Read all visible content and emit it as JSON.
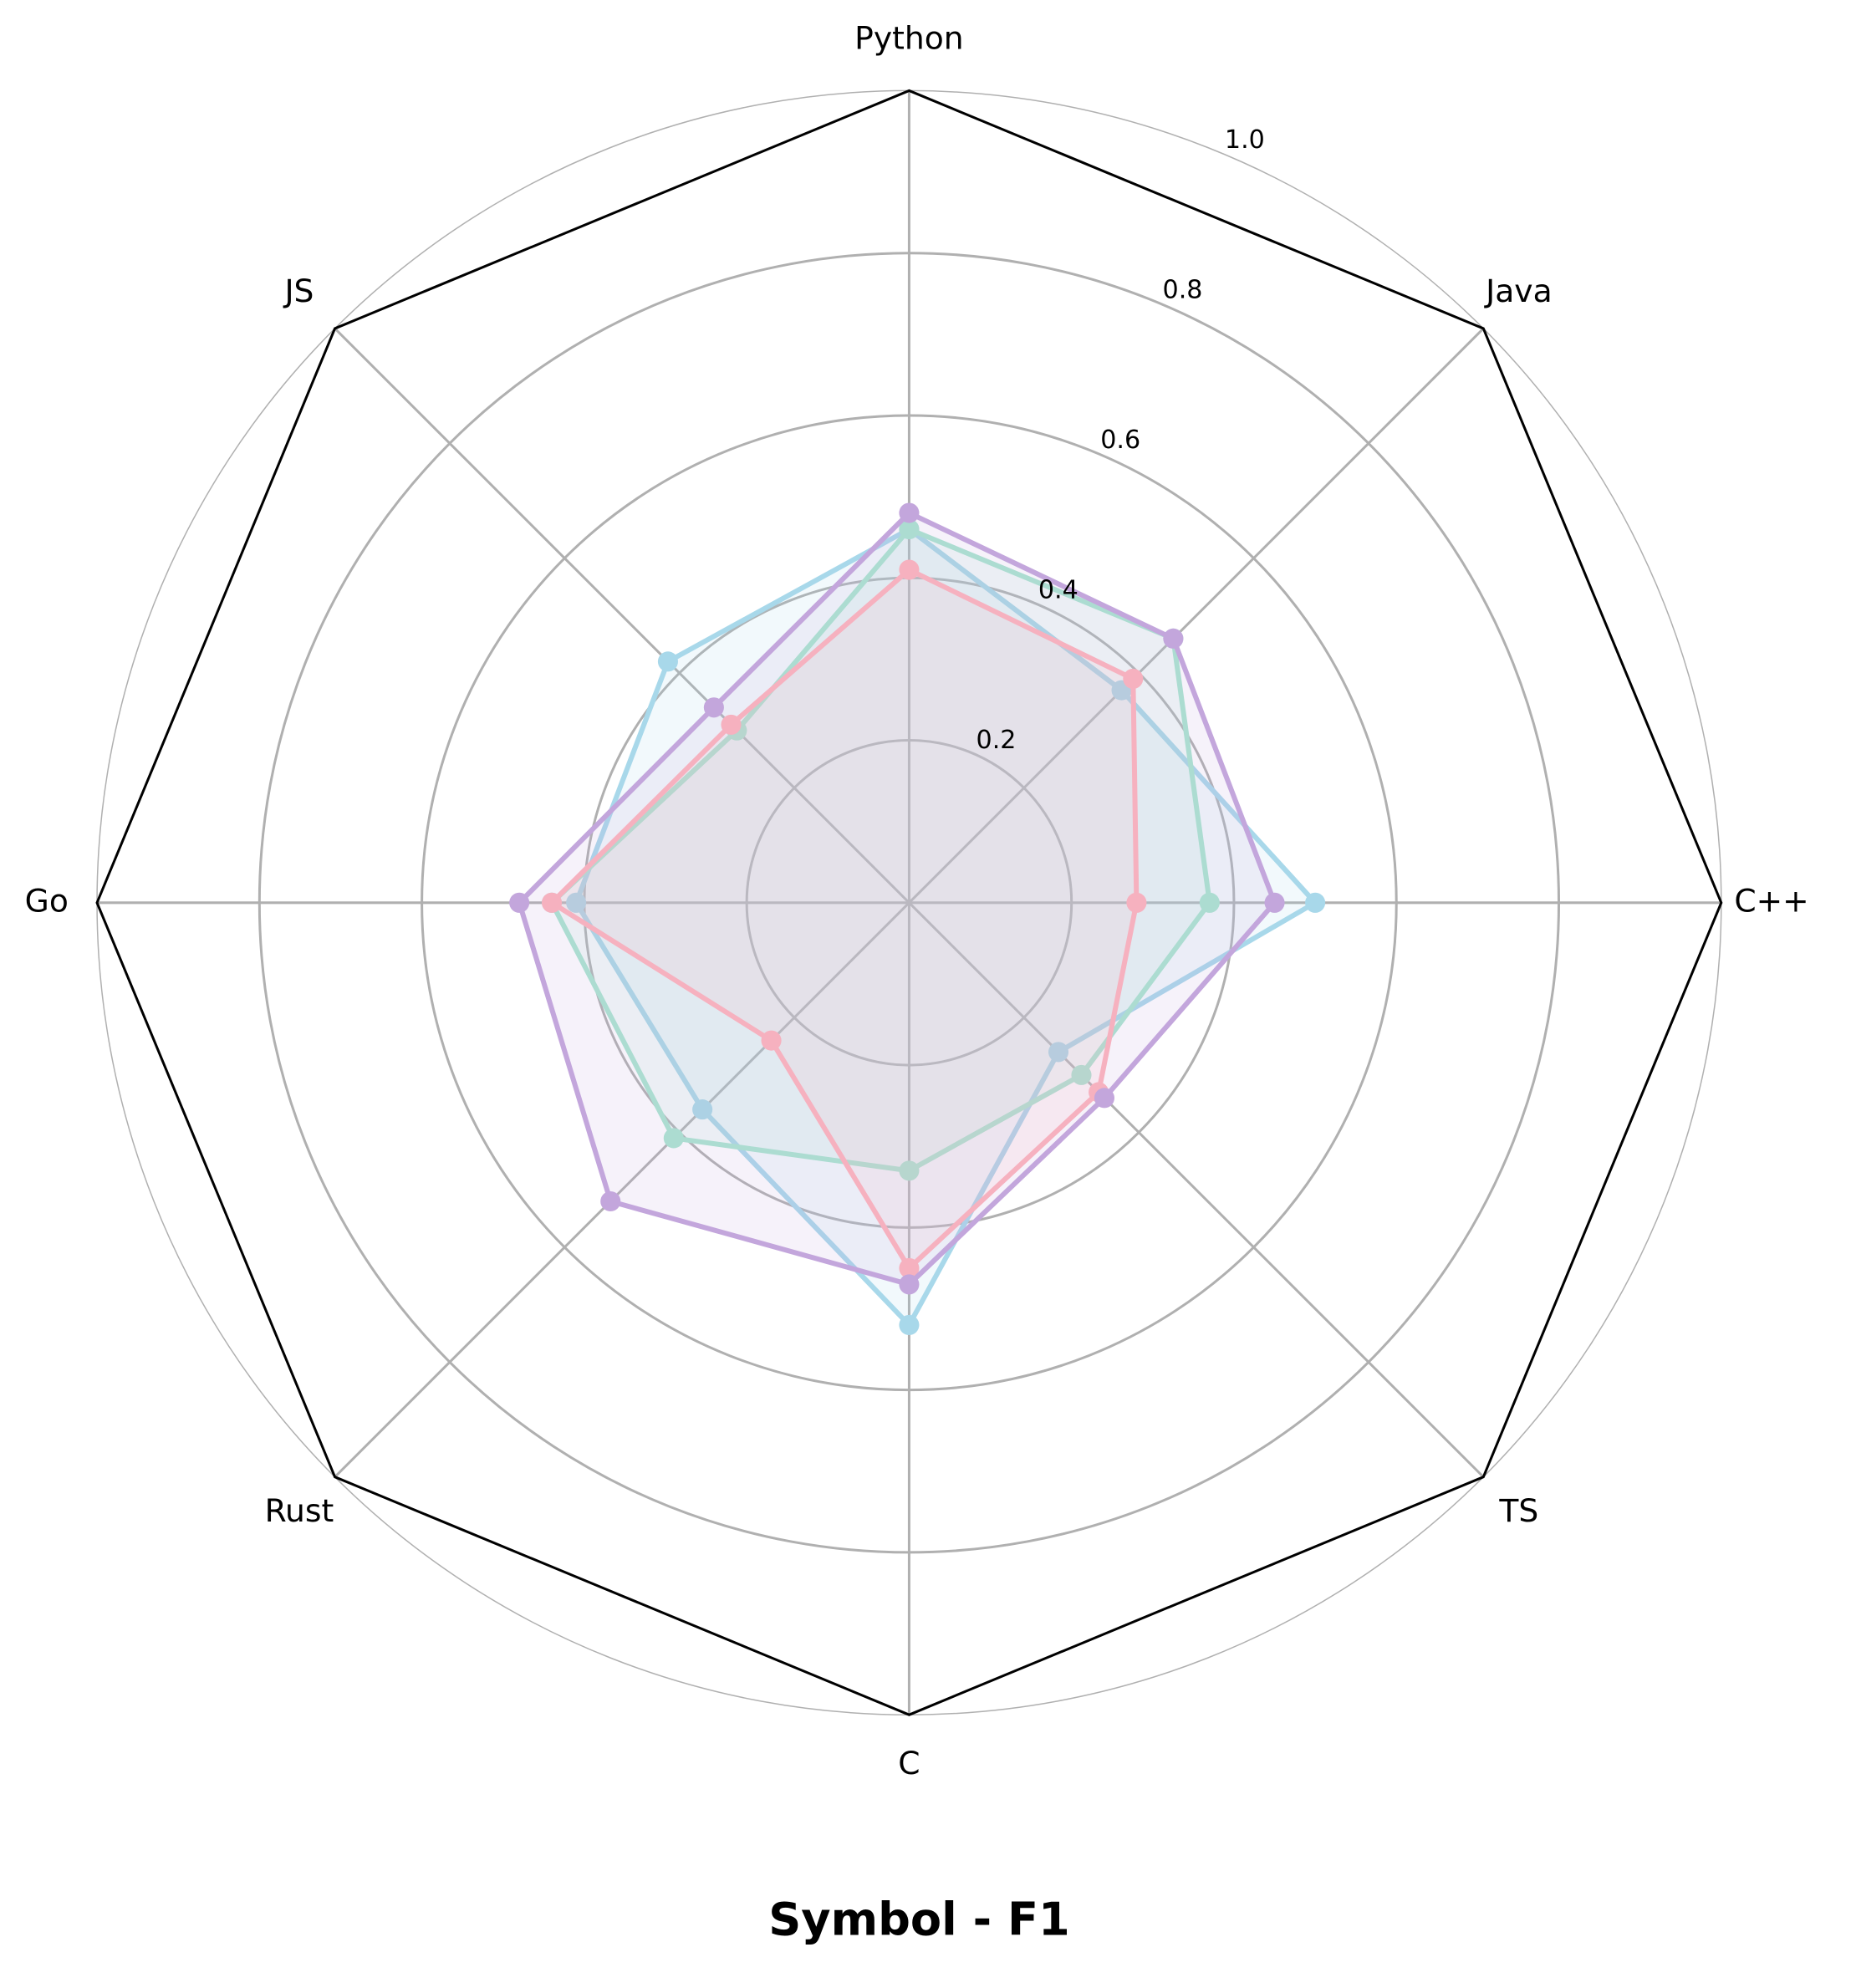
{
  "chart_data": {
    "type": "radar",
    "title": "Symbol - F1",
    "categories": [
      "Python",
      "Java",
      "C++",
      "TS",
      "C",
      "Rust",
      "Go",
      "JS"
    ],
    "ylim": [
      0,
      1
    ],
    "yticks": [
      0.2,
      0.4,
      0.6,
      0.8,
      {
        "value": 1,
        "label": "1.0"
      }
    ],
    "grid": true,
    "series": [
      {
        "color": "#a8d8ea",
        "values": [
          0.46,
          0.37,
          0.5,
          0.26,
          0.52,
          0.36,
          0.41,
          0.42
        ]
      },
      {
        "color": "#a8e6cf",
        "values": [
          0.46,
          0.46,
          0.37,
          0.3,
          0.33,
          0.41,
          0.44,
          0.3
        ]
      },
      {
        "color": "#ffb3ba",
        "values": [
          0.41,
          0.39,
          0.28,
          0.33,
          0.45,
          0.24,
          0.44,
          0.31
        ]
      },
      {
        "color": "#c3a6dc",
        "values": [
          0.48,
          0.46,
          0.45,
          0.34,
          0.47,
          0.52,
          0.48,
          0.34
        ]
      }
    ]
  }
}
